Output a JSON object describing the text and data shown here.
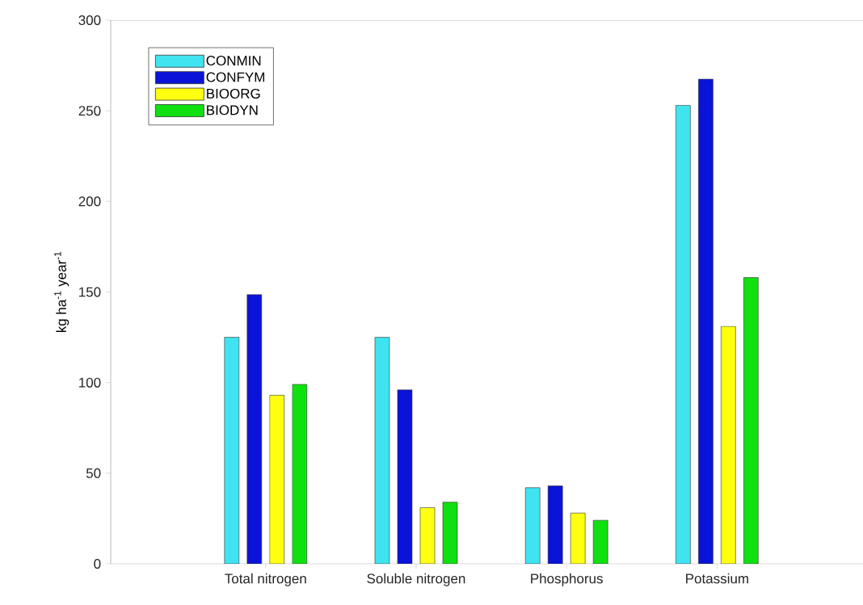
{
  "chart_data": {
    "type": "bar",
    "ylabel": "kg ha$^{-1}$ year$^{-1}$",
    "categories": [
      "Total nitrogen",
      "Soluble nitrogen",
      "Phosphorus",
      "Potassium"
    ],
    "series": [
      {
        "name": "CONMIN",
        "color": "#40e4f0",
        "values": [
          125,
          125,
          42,
          253
        ]
      },
      {
        "name": "CONFYM",
        "color": "#0a14d8",
        "values": [
          148.5,
          96,
          43,
          267.5
        ]
      },
      {
        "name": "BIOORG",
        "color": "#ffff10",
        "values": [
          93,
          31,
          28,
          131
        ]
      },
      {
        "name": "BIODYN",
        "color": "#10e010",
        "values": [
          99,
          34,
          24,
          158
        ]
      }
    ],
    "ylim": [
      0,
      300
    ],
    "yticks": [
      0,
      50,
      100,
      150,
      200,
      250,
      300
    ],
    "legend": "top left"
  }
}
